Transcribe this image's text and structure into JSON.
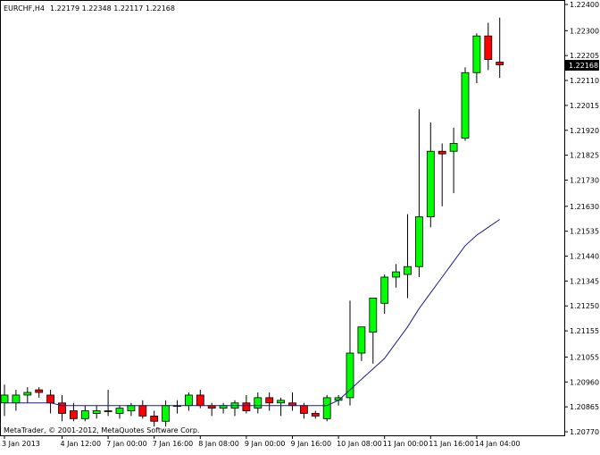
{
  "header": {
    "symbol": "EURCHF,H4",
    "ohlc": "1.22179 1.22348 1.22117 1.22168"
  },
  "footer": {
    "copyright": "MetaTrader, © 2001-2012, MetaQuotes Software Corp."
  },
  "colors": {
    "background": "#ffffff",
    "axis": "#000000",
    "bull": "#00ff00",
    "bear": "#ff0000",
    "candle_outline": "#000000",
    "moving_average": "#1a1a8c",
    "price_label_bg": "#000000",
    "price_label_text": "#ffffff"
  },
  "chart_data": {
    "type": "candlestick",
    "timeframe": "H4",
    "ylim": [
      1.2077,
      1.224
    ],
    "y_ticks": [
      "1.22400",
      "1.22300",
      "1.22205",
      "1.22110",
      "1.22015",
      "1.21920",
      "1.21825",
      "1.21730",
      "1.21630",
      "1.21535",
      "1.21440",
      "1.21345",
      "1.21250",
      "1.21155",
      "1.21055",
      "1.20960",
      "1.20865",
      "1.20770"
    ],
    "x_ticks": [
      {
        "label": "3 Jan 2013",
        "index": 0
      },
      {
        "label": "4 Jan 12:00",
        "index": 5
      },
      {
        "label": "7 Jan 00:00",
        "index": 9
      },
      {
        "label": "7 Jan 16:00",
        "index": 13
      },
      {
        "label": "8 Jan 08:00",
        "index": 17
      },
      {
        "label": "9 Jan 00:00",
        "index": 21
      },
      {
        "label": "9 Jan 16:00",
        "index": 25
      },
      {
        "label": "10 Jan 08:00",
        "index": 29
      },
      {
        "label": "11 Jan 00:00",
        "index": 33
      },
      {
        "label": "11 Jan 16:00",
        "index": 37
      },
      {
        "label": "14 Jan 04:00",
        "index": 41
      }
    ],
    "last_price": "1.22168",
    "candles": [
      {
        "o": 1.2088,
        "h": 1.2095,
        "l": 1.2083,
        "c": 1.2091
      },
      {
        "o": 1.2088,
        "h": 1.2093,
        "l": 1.2085,
        "c": 1.2091
      },
      {
        "o": 1.2091,
        "h": 1.2094,
        "l": 1.2088,
        "c": 1.2092
      },
      {
        "o": 1.2093,
        "h": 1.2094,
        "l": 1.209,
        "c": 1.2092
      },
      {
        "o": 1.2091,
        "h": 1.2093,
        "l": 1.2084,
        "c": 1.2088
      },
      {
        "o": 1.2088,
        "h": 1.2091,
        "l": 1.2081,
        "c": 1.2084
      },
      {
        "o": 1.2085,
        "h": 1.2088,
        "l": 1.2081,
        "c": 1.2082
      },
      {
        "o": 1.2082,
        "h": 1.2087,
        "l": 1.2081,
        "c": 1.2085
      },
      {
        "o": 1.2084,
        "h": 1.2087,
        "l": 1.2082,
        "c": 1.2085
      },
      {
        "o": 1.2085,
        "h": 1.2093,
        "l": 1.2083,
        "c": 1.2085
      },
      {
        "o": 1.2084,
        "h": 1.2087,
        "l": 1.2082,
        "c": 1.2086
      },
      {
        "o": 1.2085,
        "h": 1.2088,
        "l": 1.2083,
        "c": 1.2087
      },
      {
        "o": 1.2087,
        "h": 1.2089,
        "l": 1.2082,
        "c": 1.2083
      },
      {
        "o": 1.2083,
        "h": 1.2085,
        "l": 1.2079,
        "c": 1.2081
      },
      {
        "o": 1.2081,
        "h": 1.2089,
        "l": 1.2079,
        "c": 1.2087
      },
      {
        "o": 1.2087,
        "h": 1.2089,
        "l": 1.2084,
        "c": 1.2087
      },
      {
        "o": 1.2087,
        "h": 1.2092,
        "l": 1.2085,
        "c": 1.2091
      },
      {
        "o": 1.2091,
        "h": 1.2093,
        "l": 1.2086,
        "c": 1.2087
      },
      {
        "o": 1.2087,
        "h": 1.2088,
        "l": 1.2083,
        "c": 1.2086
      },
      {
        "o": 1.2086,
        "h": 1.2088,
        "l": 1.2084,
        "c": 1.2087
      },
      {
        "o": 1.2086,
        "h": 1.2089,
        "l": 1.2083,
        "c": 1.2088
      },
      {
        "o": 1.2088,
        "h": 1.2091,
        "l": 1.2084,
        "c": 1.2085
      },
      {
        "o": 1.2086,
        "h": 1.2092,
        "l": 1.2084,
        "c": 1.209
      },
      {
        "o": 1.209,
        "h": 1.2092,
        "l": 1.2085,
        "c": 1.2088
      },
      {
        "o": 1.2088,
        "h": 1.209,
        "l": 1.2083,
        "c": 1.2089
      },
      {
        "o": 1.2088,
        "h": 1.2092,
        "l": 1.2085,
        "c": 1.2087
      },
      {
        "o": 1.2087,
        "h": 1.2088,
        "l": 1.2082,
        "c": 1.2084
      },
      {
        "o": 1.2084,
        "h": 1.2085,
        "l": 1.2082,
        "c": 1.2083
      },
      {
        "o": 1.2082,
        "h": 1.2091,
        "l": 1.2081,
        "c": 1.209
      },
      {
        "o": 1.2089,
        "h": 1.2091,
        "l": 1.2087,
        "c": 1.209
      },
      {
        "o": 1.209,
        "h": 1.2127,
        "l": 1.2087,
        "c": 1.2107
      },
      {
        "o": 1.2107,
        "h": 1.2117,
        "l": 1.2104,
        "c": 1.2117
      },
      {
        "o": 1.2115,
        "h": 1.2128,
        "l": 1.2103,
        "c": 1.2128
      },
      {
        "o": 1.2126,
        "h": 1.2137,
        "l": 1.2122,
        "c": 1.2136
      },
      {
        "o": 1.2136,
        "h": 1.2141,
        "l": 1.2132,
        "c": 1.2138
      },
      {
        "o": 1.2137,
        "h": 1.216,
        "l": 1.2128,
        "c": 1.214
      },
      {
        "o": 1.214,
        "h": 1.22,
        "l": 1.2136,
        "c": 1.2159
      },
      {
        "o": 1.2159,
        "h": 1.2195,
        "l": 1.2155,
        "c": 1.2184
      },
      {
        "o": 1.2184,
        "h": 1.2187,
        "l": 1.2163,
        "c": 1.2183
      },
      {
        "o": 1.2184,
        "h": 1.2193,
        "l": 1.2168,
        "c": 1.2187
      },
      {
        "o": 1.2189,
        "h": 1.2216,
        "l": 1.2188,
        "c": 1.2214
      },
      {
        "o": 1.2214,
        "h": 1.2229,
        "l": 1.221,
        "c": 1.2228
      },
      {
        "o": 1.2228,
        "h": 1.2233,
        "l": 1.2215,
        "c": 1.2219
      },
      {
        "o": 1.2218,
        "h": 1.2235,
        "l": 1.2212,
        "c": 1.2217
      }
    ],
    "moving_average": [
      1.2088,
      1.2088,
      1.2088,
      1.2088,
      1.2088,
      1.2087,
      1.2087,
      1.2087,
      1.2087,
      1.2087,
      1.2087,
      1.2087,
      1.2087,
      1.2087,
      1.2087,
      1.2087,
      1.2087,
      1.2087,
      1.2087,
      1.2087,
      1.2087,
      1.2087,
      1.2087,
      1.2087,
      1.2087,
      1.2087,
      1.2087,
      1.2087,
      1.2087,
      1.2089,
      1.2093,
      1.2097,
      1.2101,
      1.2105,
      1.2111,
      1.2117,
      1.2124,
      1.213,
      1.2136,
      1.2142,
      1.2148,
      1.2152,
      1.2155,
      1.2158
    ]
  }
}
